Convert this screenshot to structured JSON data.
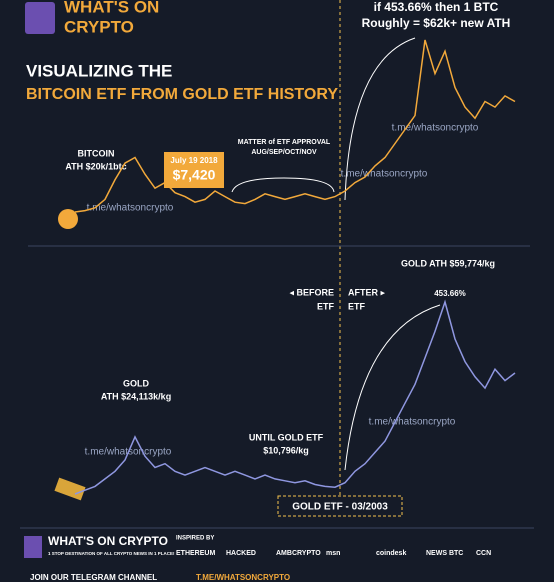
{
  "header": {
    "brand_line1": "WHAT'S ON",
    "brand_line2": "CRYPTO",
    "title_line1": "VISUALIZING THE",
    "title_line2": "BITCOIN ETF FROM GOLD ETF HISTORY"
  },
  "chart_data": [
    {
      "type": "line",
      "name": "BITCOIN",
      "color": "#f2a93b",
      "values": [
        0.5,
        1,
        2,
        5,
        12,
        18,
        20,
        14,
        9,
        11,
        7.4,
        6,
        4,
        5,
        8,
        6,
        4,
        3.5,
        5,
        7,
        6,
        5,
        6,
        7,
        6,
        5,
        6,
        8,
        11,
        13,
        17,
        20,
        25,
        30,
        35,
        62,
        50,
        58,
        45,
        38,
        34,
        40,
        38,
        42,
        40
      ],
      "annotations": [
        "BITCOIN",
        "ATH $20k/1btc",
        "July 19 2018",
        "$7,420",
        "MATTER of ETF APPROVAL",
        "AUG/SEP/OCT/NOV",
        "if 453.66% then 1 BTC",
        "Roughly = $62k+ new ATH"
      ],
      "watermarks": [
        "t.me/whatsoncrypto",
        "t.me/whatsoncrypto",
        "t.me/whatsoncrypto"
      ]
    },
    {
      "type": "line",
      "name": "GOLD",
      "color": "#8f97e0",
      "values": [
        9,
        10,
        11,
        13,
        15,
        18,
        24.113,
        19,
        16,
        17,
        15,
        14,
        15,
        16,
        15,
        14,
        15,
        14,
        13,
        14,
        13,
        12.5,
        12,
        12.5,
        11.5,
        11,
        10.796,
        12,
        15,
        17,
        20,
        23,
        28,
        33,
        38,
        45,
        52,
        59.774,
        50,
        44,
        40,
        37,
        42,
        39,
        41
      ],
      "annotations": [
        "GOLD",
        "ATH $24,113k/kg",
        "UNTIL GOLD ETF",
        "$10,796/kg",
        "GOLD ATH $59,774/kg",
        "453.66%",
        "◂ BEFORE",
        "ETF",
        "AFTER ▸",
        "ETF",
        "GOLD ETF - 03/2003"
      ],
      "watermarks": [
        "t.me/whatsoncrypto",
        "t.me/whatsoncrypto"
      ]
    }
  ],
  "footer": {
    "brand": "WHAT'S ON CRYPTO",
    "tagline": "1 STOP DESTINATION OF ALL CRYPTO NEWS IN 1 PLACE!",
    "inspired": "INSPIRED BY",
    "partners": [
      "ETHEREUM",
      "HACKED",
      "AMBCRYPTO",
      "msn",
      "coindesk",
      "NEWS BTC",
      "CCN"
    ],
    "join": "JOIN OUR TELEGRAM CHANNEL",
    "link": "T.ME/WHATSONCRYPTO"
  }
}
